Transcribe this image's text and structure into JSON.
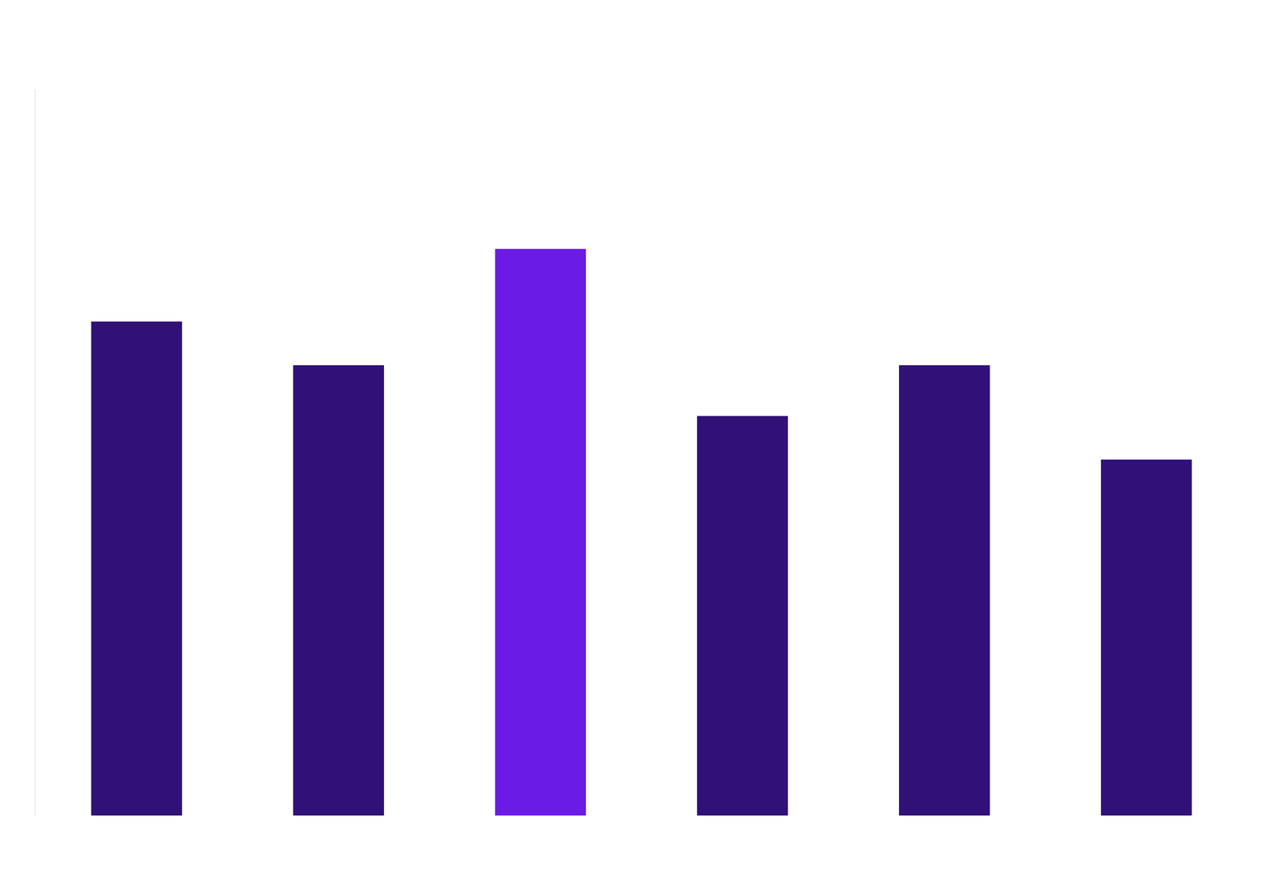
{
  "chart_data": {
    "type": "bar",
    "categories": [
      null,
      null,
      null,
      null,
      null,
      null
    ],
    "values": [
      68,
      62,
      78,
      55,
      62,
      49
    ],
    "colors": [
      "#2f1178",
      "#2f1178",
      "#6a1be6",
      "#2f1178",
      "#2f1178",
      "#2f1178"
    ],
    "ylim": [
      0,
      100
    ],
    "tick_labels": false,
    "grid": false
  }
}
